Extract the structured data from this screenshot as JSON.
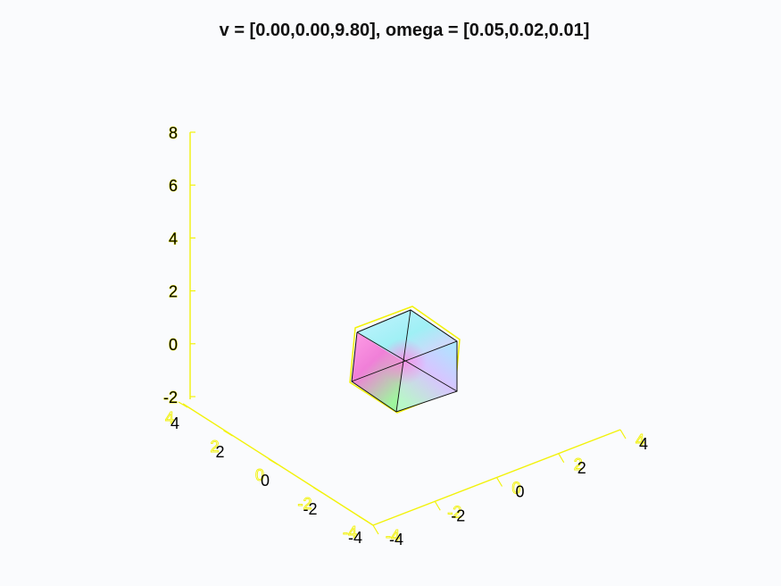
{
  "chart_data": {
    "type": "scatter3d",
    "title": "v = [0.00,0.00,9.80], omega = [0.05,0.02,0.01]",
    "object": "cube",
    "axes": {
      "x": {
        "lim": [
          -4,
          4
        ],
        "ticks": [
          "-4",
          "-2",
          "0",
          "2",
          "4"
        ]
      },
      "y": {
        "lim": [
          -4,
          4
        ],
        "ticks": [
          "-4",
          "-2",
          "0",
          "2",
          "4"
        ]
      },
      "z": {
        "lim": [
          -2,
          8
        ],
        "ticks": [
          "-2",
          "0",
          "2",
          "4",
          "6",
          "8"
        ]
      }
    },
    "grid": false,
    "colors": {
      "axis": "#f2f20a",
      "edge": "#111111",
      "background": "#fafbfd"
    }
  }
}
